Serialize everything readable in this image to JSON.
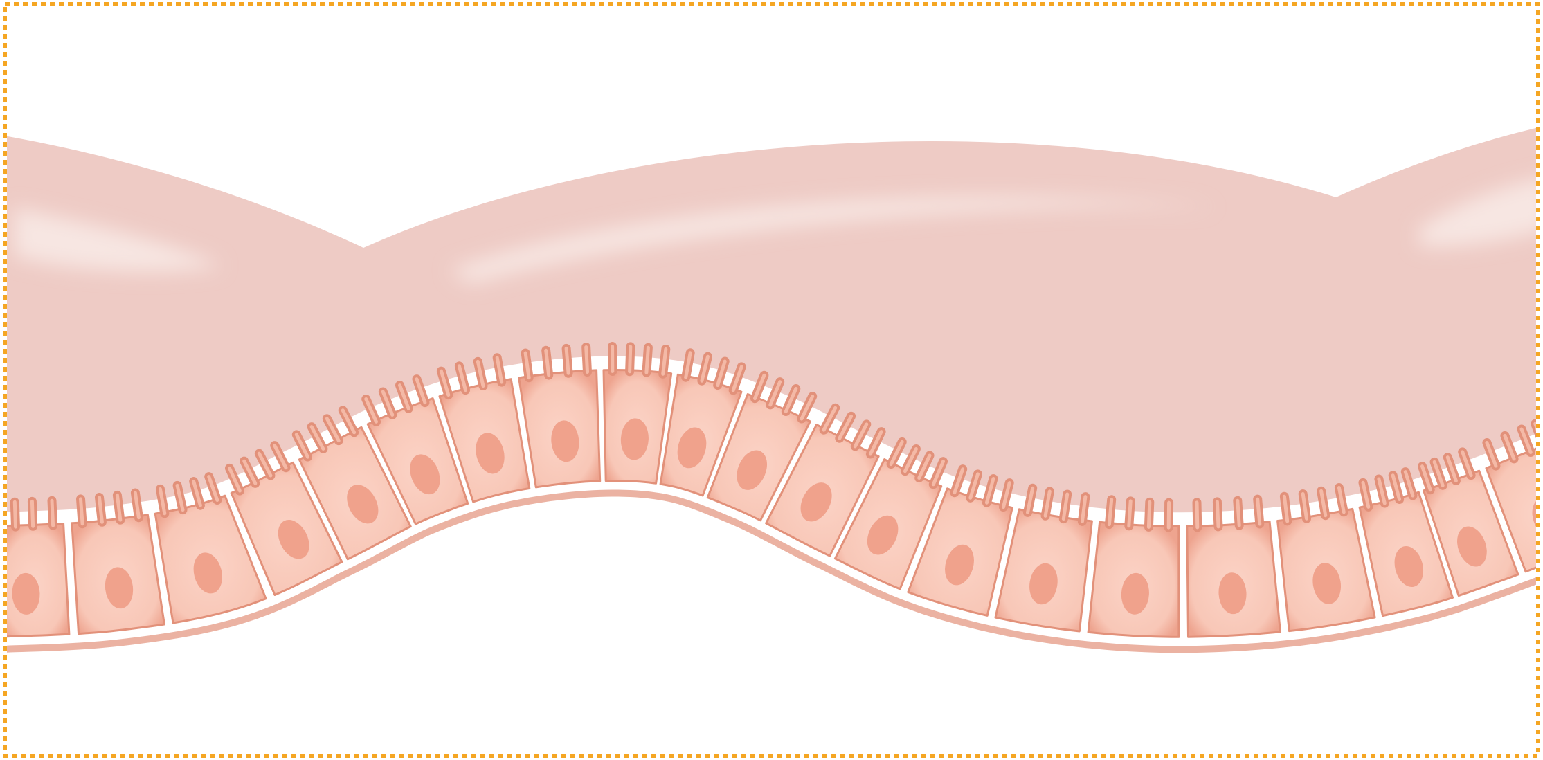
{
  "figure": {
    "border_color": "#f5a623",
    "mucus_color": "#eecbc5",
    "mucus_highlight_color": "#f7e6e2",
    "cell_fill_color": "#f9cbbd",
    "cell_edge_color": "#e2917a",
    "nucleus_color": "#f0a28c",
    "basement_membrane_color": "#ebb2a2",
    "cell_count": 21,
    "microvilli_per_cell": 4
  }
}
